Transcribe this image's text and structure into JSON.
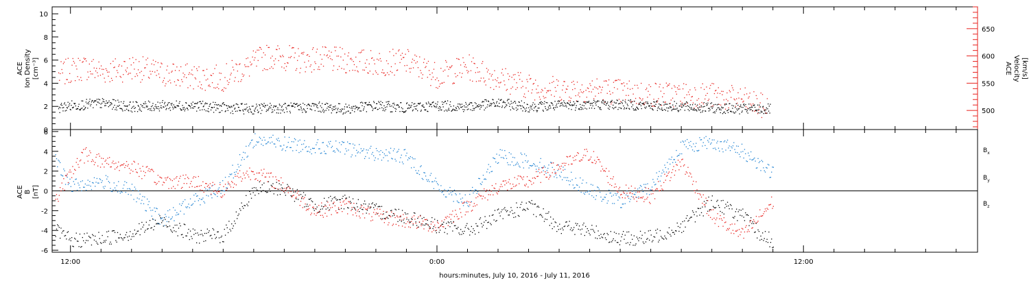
{
  "figure": {
    "xlabel": "hours:minutes, July 10, 2016 - July 11, 2016",
    "x_tick_labels": [
      {
        "hour": 12,
        "text": "12:00"
      },
      {
        "hour": 24,
        "text": "0:00"
      },
      {
        "hour": 36,
        "text": "12:00"
      }
    ],
    "x_range_hours": [
      11.4,
      41.7
    ]
  },
  "chart_data": [
    {
      "type": "scatter",
      "panel": "top",
      "left_axis": {
        "label_lines": [
          "ACE",
          "Ion Density",
          "[cm⁻³]"
        ],
        "ylim": [
          0,
          10.6
        ],
        "ticks": [
          0,
          2,
          4,
          6,
          8,
          10
        ],
        "color": "#000000"
      },
      "right_axis": {
        "label_lines": [
          "ACE",
          "Velocity",
          "[km/s]"
        ],
        "ylim": [
          465,
          690
        ],
        "ticks": [
          500,
          550,
          600,
          650
        ],
        "color": "#e8201c"
      },
      "series": [
        {
          "axis": "left",
          "color": "#000000",
          "x_hours": [
            11.6,
            12.0,
            13.0,
            14.0,
            15.0,
            16.0,
            17.0,
            18.0,
            18.4,
            19.5,
            20.0,
            21.0,
            22.0,
            23.0,
            24.0,
            25.0,
            26.0,
            27.0,
            28.0,
            29.0,
            30.0,
            31.0,
            32.0,
            33.0,
            34.0,
            34.9
          ],
          "y": [
            1.9,
            2.1,
            2.3,
            2.0,
            2.1,
            2.1,
            1.9,
            1.8,
            1.9,
            1.9,
            2.0,
            1.8,
            2.1,
            1.9,
            2.1,
            2.0,
            2.3,
            2.0,
            2.1,
            2.2,
            2.2,
            2.1,
            2.0,
            1.9,
            1.8,
            1.8
          ]
        },
        {
          "axis": "right",
          "color": "#e8201c",
          "x_hours": [
            11.6,
            12.0,
            12.5,
            13.0,
            13.5,
            14.0,
            15.0,
            16.0,
            17.0,
            17.3,
            17.8,
            18.2,
            18.5,
            19.0,
            19.5,
            20.0,
            21.0,
            22.0,
            23.0,
            24.0,
            25.0,
            26.0,
            27.0,
            28.0,
            29.0,
            30.0,
            31.0,
            32.0,
            33.0,
            34.0,
            34.8
          ],
          "y": [
            565,
            575,
            580,
            572,
            575,
            580,
            568,
            562,
            560,
            570,
            580,
            595,
            600,
            598,
            593,
            595,
            592,
            588,
            590,
            565,
            580,
            560,
            545,
            540,
            540,
            535,
            530,
            530,
            528,
            520,
            505
          ]
        }
      ]
    },
    {
      "type": "scatter",
      "panel": "bottom",
      "left_axis": {
        "label_lines": [
          "ACE",
          "B",
          "[nT]"
        ],
        "ylim": [
          -6.2,
          6.2
        ],
        "ticks": [
          -6,
          -4,
          -2,
          0,
          2,
          4,
          6
        ]
      },
      "zero_line": true,
      "series": [
        {
          "name": "Bx",
          "color": "#000000",
          "x_hours": [
            11.5,
            12.0,
            13.0,
            14.0,
            15.0,
            16.0,
            17.0,
            18.0,
            19.0,
            20.0,
            21.0,
            22.0,
            23.0,
            24.0,
            25.0,
            26.0,
            27.0,
            28.0,
            29.0,
            30.0,
            31.0,
            32.0,
            33.0,
            34.0,
            34.6,
            35.0
          ],
          "y": [
            -4.0,
            -5.0,
            -4.8,
            -4.2,
            -3.0,
            -4.5,
            -4.5,
            0.2,
            0.3,
            -1.5,
            -1.0,
            -2.0,
            -2.5,
            -3.5,
            -4.0,
            -2.5,
            -1.5,
            -3.5,
            -4.0,
            -4.8,
            -4.7,
            -3.5,
            -1.0,
            -2.5,
            -4.5,
            -5.0
          ]
        },
        {
          "name": "By",
          "color": "#1e82d2",
          "x_hours": [
            11.5,
            12.0,
            13.0,
            14.0,
            15.0,
            16.0,
            17.0,
            18.0,
            19.0,
            20.0,
            21.0,
            22.0,
            23.0,
            24.0,
            25.0,
            26.0,
            27.0,
            28.0,
            29.0,
            30.0,
            31.0,
            32.0,
            33.0,
            34.0,
            34.7,
            35.0
          ],
          "y": [
            3.0,
            0.5,
            1.0,
            0.0,
            -3.0,
            -1.0,
            0.5,
            5.2,
            4.8,
            4.5,
            4.3,
            3.8,
            3.5,
            0.5,
            -1.0,
            3.5,
            3.0,
            2.0,
            0.0,
            -1.0,
            0.5,
            4.5,
            5.0,
            4.0,
            2.5,
            1.8
          ]
        },
        {
          "name": "Bz",
          "color": "#e8201c",
          "x_hours": [
            11.5,
            12.0,
            12.5,
            13.0,
            14.0,
            15.0,
            16.0,
            17.0,
            17.5,
            18.0,
            19.0,
            20.0,
            21.0,
            22.0,
            23.0,
            24.0,
            25.0,
            26.0,
            27.0,
            28.0,
            29.0,
            30.0,
            31.0,
            32.0,
            33.0,
            34.0,
            35.0
          ],
          "y": [
            -1.0,
            2.0,
            3.8,
            3.0,
            2.5,
            1.0,
            1.0,
            0.0,
            1.5,
            2.0,
            0.5,
            -2.0,
            -1.5,
            -2.5,
            -3.0,
            -3.5,
            -1.5,
            0.5,
            1.0,
            2.5,
            3.8,
            0.0,
            -0.5,
            3.0,
            -2.5,
            -4.5,
            -1.0
          ]
        }
      ],
      "legend": [
        {
          "label": "B",
          "sub": "x",
          "color": "#000000"
        },
        {
          "label": "B",
          "sub": "y",
          "color": "#1e82d2"
        },
        {
          "label": "B",
          "sub": "z",
          "color": "#e8201c"
        }
      ]
    }
  ]
}
